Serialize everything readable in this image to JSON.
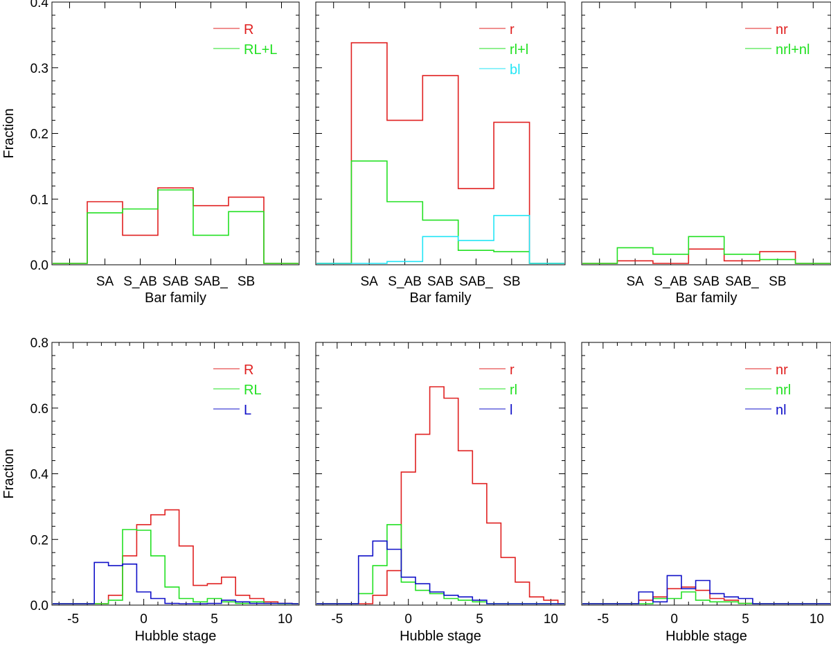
{
  "colors": {
    "red": "#e02020",
    "green": "#22e022",
    "cyan": "#22e5f5",
    "blue": "#1010c8",
    "axis": "#000000"
  },
  "chart_data": [
    {
      "type": "histogram-step",
      "xlabel": "Bar family",
      "ylabel": "Fraction",
      "categories": [
        "SA",
        "S_AB",
        "SAB",
        "SAB_",
        "SB"
      ],
      "ylim": [
        0,
        0.4
      ],
      "yticks": [
        "0.0",
        "0.1",
        "0.2",
        "0.3",
        "0.4"
      ],
      "legend": {
        "position": "top-right"
      },
      "series": [
        {
          "name": "R",
          "color": "red",
          "values": [
            0.096,
            0.045,
            0.117,
            0.09,
            0.103
          ]
        },
        {
          "name": "RL+L",
          "color": "green",
          "values": [
            0.079,
            0.085,
            0.114,
            0.045,
            0.081
          ]
        }
      ]
    },
    {
      "type": "histogram-step",
      "xlabel": "Bar family",
      "ylabel": "",
      "categories": [
        "SA",
        "S_AB",
        "SAB",
        "SAB_",
        "SB"
      ],
      "ylim": [
        0,
        0.4
      ],
      "legend": {
        "position": "top-right"
      },
      "series": [
        {
          "name": "r",
          "color": "red",
          "values": [
            0.338,
            0.22,
            0.288,
            0.116,
            0.217
          ]
        },
        {
          "name": "rl+l",
          "color": "green",
          "values": [
            0.158,
            0.096,
            0.068,
            0.022,
            0.02
          ]
        },
        {
          "name": "bl",
          "color": "cyan",
          "values": [
            0.0,
            0.005,
            0.043,
            0.037,
            0.075
          ]
        }
      ]
    },
    {
      "type": "histogram-step",
      "xlabel": "Bar family",
      "ylabel": "",
      "categories": [
        "SA",
        "S_AB",
        "SAB",
        "SAB_",
        "SB"
      ],
      "ylim": [
        0,
        0.4
      ],
      "legend": {
        "position": "top-right"
      },
      "series": [
        {
          "name": "nr",
          "color": "red",
          "values": [
            0.006,
            0.0,
            0.024,
            0.006,
            0.02
          ]
        },
        {
          "name": "nrl+nl",
          "color": "green",
          "values": [
            0.026,
            0.016,
            0.043,
            0.016,
            0.008
          ]
        }
      ]
    },
    {
      "type": "histogram-step",
      "xlabel": "Hubble stage",
      "ylabel": "Fraction",
      "bin_centers": [
        -6,
        -5,
        -4,
        -3,
        -2,
        -1,
        0,
        1,
        2,
        3,
        4,
        5,
        6,
        7,
        8,
        9,
        10,
        11
      ],
      "xlim": [
        -6.5,
        11
      ],
      "xticks": [
        -5,
        0,
        5,
        10
      ],
      "ylim": [
        0,
        0.8
      ],
      "yticks": [
        "0.0",
        "0.2",
        "0.4",
        "0.6",
        "0.8"
      ],
      "legend": {
        "position": "top-right"
      },
      "series": [
        {
          "name": "R",
          "color": "red",
          "values": [
            0,
            0,
            0,
            0,
            0.03,
            0.15,
            0.245,
            0.275,
            0.29,
            0.18,
            0.06,
            0.065,
            0.085,
            0.03,
            0.02,
            0.01,
            0.005,
            0
          ]
        },
        {
          "name": "RL",
          "color": "green",
          "values": [
            0,
            0,
            0,
            0,
            0.015,
            0.23,
            0.228,
            0.15,
            0.055,
            0.02,
            0.01,
            0.02,
            0.01,
            0.005,
            0.01,
            0.005,
            0,
            0
          ]
        },
        {
          "name": "L",
          "color": "blue",
          "values": [
            0,
            0,
            0,
            0.13,
            0.12,
            0.125,
            0.04,
            0.02,
            0.005,
            0,
            0,
            0.005,
            0.015,
            0.01,
            0.005,
            0.005,
            0.005,
            0
          ]
        }
      ]
    },
    {
      "type": "histogram-step",
      "xlabel": "Hubble stage",
      "ylabel": "",
      "bin_centers": [
        -6,
        -5,
        -4,
        -3,
        -2,
        -1,
        0,
        1,
        2,
        3,
        4,
        5,
        6,
        7,
        8,
        9,
        10,
        11
      ],
      "xlim": [
        -6.5,
        11
      ],
      "xticks": [
        -5,
        0,
        5,
        10
      ],
      "ylim": [
        0,
        0.8
      ],
      "legend": {
        "position": "top-right"
      },
      "series": [
        {
          "name": "r",
          "color": "red",
          "values": [
            0,
            0,
            0,
            0,
            0.03,
            0.105,
            0.405,
            0.52,
            0.665,
            0.63,
            0.47,
            0.37,
            0.25,
            0.145,
            0.07,
            0.025,
            0.015,
            0
          ]
        },
        {
          "name": "rl",
          "color": "green",
          "values": [
            0,
            0,
            0,
            0.035,
            0.12,
            0.245,
            0.07,
            0.045,
            0.035,
            0.02,
            0.015,
            0.01,
            0,
            0,
            0,
            0,
            0,
            0
          ]
        },
        {
          "name": "l",
          "color": "blue",
          "values": [
            0,
            0,
            0,
            0.15,
            0.195,
            0.17,
            0.085,
            0.065,
            0.04,
            0.03,
            0.025,
            0.015,
            0,
            0,
            0,
            0,
            0,
            0
          ]
        }
      ]
    },
    {
      "type": "histogram-step",
      "xlabel": "Hubble stage",
      "ylabel": "",
      "bin_centers": [
        -6,
        -5,
        -4,
        -3,
        -2,
        -1,
        0,
        1,
        2,
        3,
        4,
        5,
        6,
        7,
        8,
        9,
        10,
        11
      ],
      "xlim": [
        -6.5,
        11
      ],
      "xticks": [
        -5,
        0,
        5,
        10
      ],
      "ylim": [
        0,
        0.8
      ],
      "legend": {
        "position": "top-right"
      },
      "series": [
        {
          "name": "nr",
          "color": "red",
          "values": [
            0,
            0,
            0,
            0,
            0.015,
            0.025,
            0.05,
            0.055,
            0.045,
            0.02,
            0.015,
            0.005,
            0,
            0,
            0,
            0,
            0,
            0
          ]
        },
        {
          "name": "nrl",
          "color": "green",
          "values": [
            0,
            0,
            0,
            0,
            0,
            0.02,
            0.02,
            0.04,
            0.015,
            0.01,
            0.01,
            0.005,
            0,
            0,
            0,
            0,
            0,
            0
          ]
        },
        {
          "name": "nl",
          "color": "blue",
          "values": [
            0,
            0,
            0,
            0,
            0.04,
            0.01,
            0.09,
            0.05,
            0.075,
            0.035,
            0.025,
            0.02,
            0,
            0,
            0,
            0,
            0,
            0
          ]
        }
      ]
    }
  ]
}
